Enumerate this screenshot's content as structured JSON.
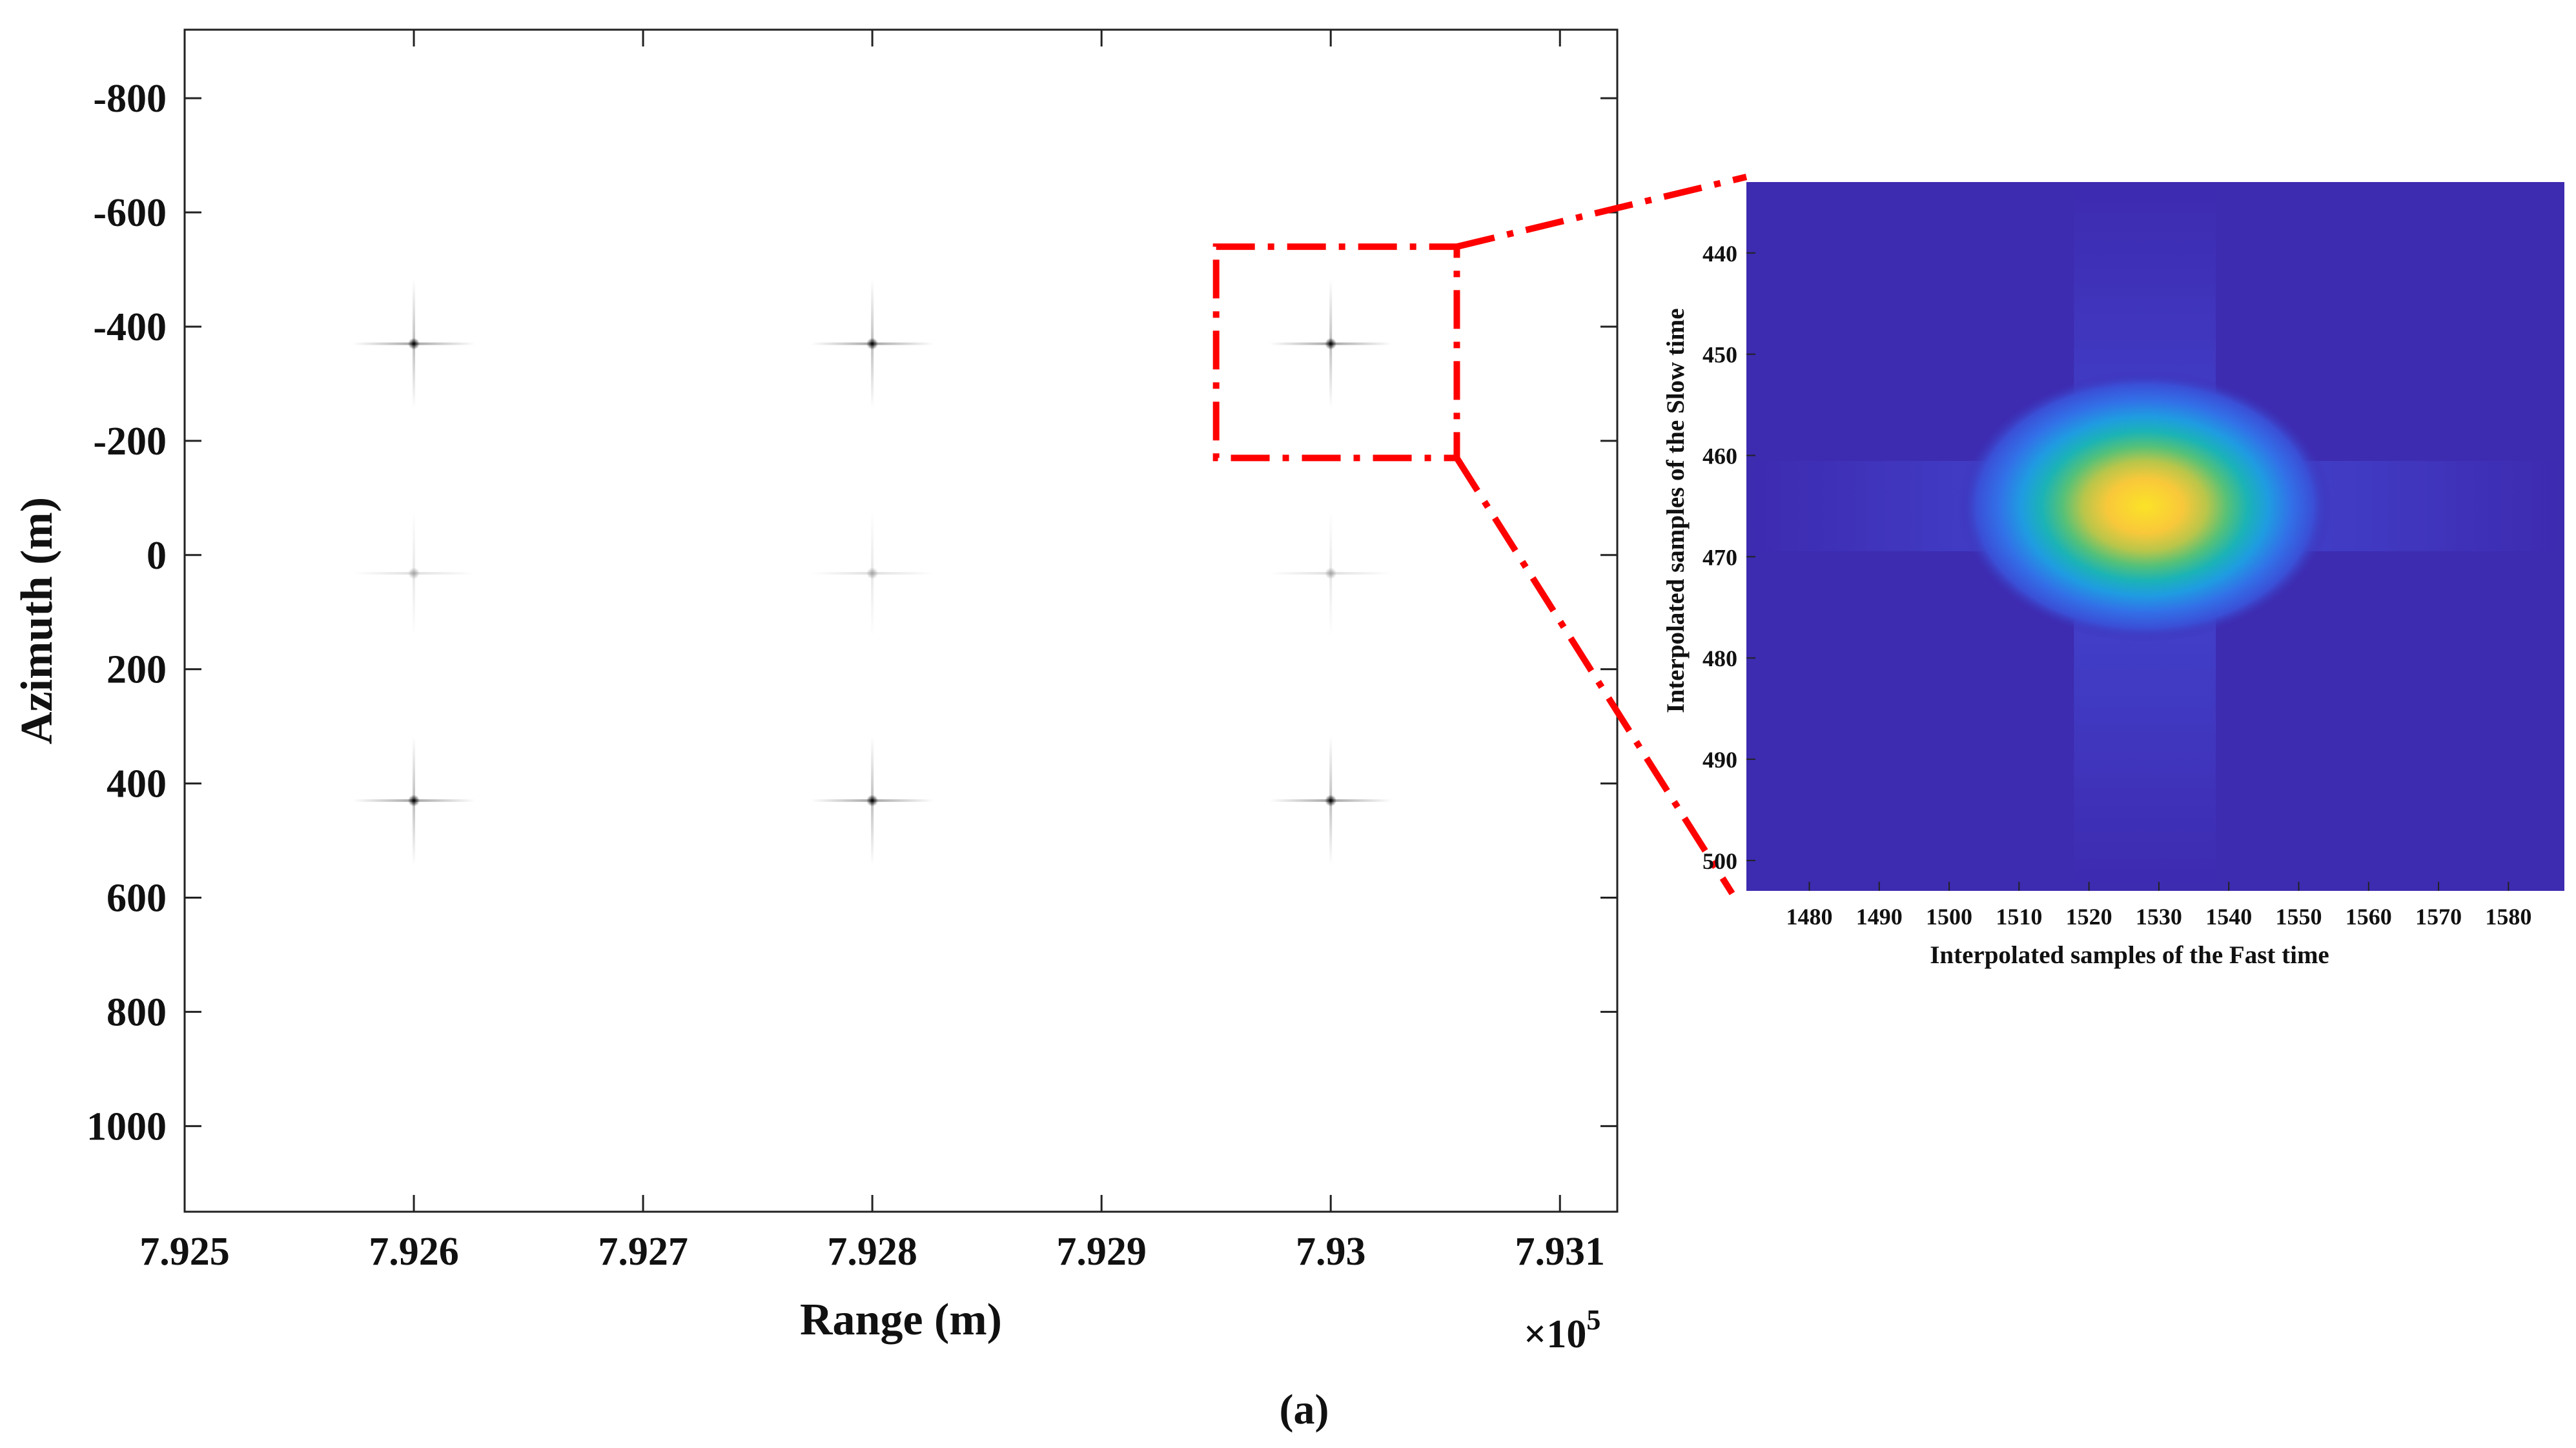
{
  "chart_data": [
    {
      "type": "scatter",
      "xlabel": "Range (m)",
      "ylabel": "Azimuth (m)",
      "x_multiplier": "×10",
      "x_multiplier_exp": "5",
      "xlim": [
        7.925,
        7.93125
      ],
      "ylim": [
        -920,
        1150
      ],
      "y_reversed": true,
      "xticks": [
        7.925,
        7.926,
        7.927,
        7.928,
        7.929,
        7.93,
        7.931
      ],
      "xtick_labels": [
        "7.925",
        "7.926",
        "7.927",
        "7.928",
        "7.929",
        "7.93",
        "7.931"
      ],
      "yticks": [
        -800,
        -600,
        -400,
        -200,
        0,
        200,
        400,
        600,
        800,
        1000
      ],
      "ytick_labels": [
        "-800",
        "-600",
        "-400",
        "-200",
        "0",
        "200",
        "400",
        "600",
        "800",
        "1000"
      ],
      "points": [
        {
          "x": 7.926,
          "y": -370,
          "strength": 1.0
        },
        {
          "x": 7.928,
          "y": -370,
          "strength": 1.0
        },
        {
          "x": 7.93,
          "y": -370,
          "strength": 1.0
        },
        {
          "x": 7.926,
          "y": 32,
          "strength": 0.35
        },
        {
          "x": 7.928,
          "y": 32,
          "strength": 0.35
        },
        {
          "x": 7.93,
          "y": 32,
          "strength": 0.35
        },
        {
          "x": 7.926,
          "y": 430,
          "strength": 1.0
        },
        {
          "x": 7.928,
          "y": 430,
          "strength": 1.0
        },
        {
          "x": 7.93,
          "y": 430,
          "strength": 1.0
        }
      ],
      "zoom_region": {
        "x": [
          7.9295,
          7.93055
        ],
        "y": [
          -540,
          -170
        ]
      },
      "highlight_color": "#ff0000",
      "grid": false
    },
    {
      "type": "heatmap",
      "xlabel": "Interpolated samples of the Fast time",
      "ylabel": "Interpolated samples of the Slow time",
      "xlim": [
        1471,
        1588
      ],
      "ylim": [
        433,
        503
      ],
      "y_reversed": true,
      "xticks": [
        1480,
        1490,
        1500,
        1510,
        1520,
        1530,
        1540,
        1550,
        1560,
        1570,
        1580
      ],
      "xtick_labels": [
        "1480",
        "1490",
        "1500",
        "1510",
        "1520",
        "1530",
        "1540",
        "1550",
        "1560",
        "1570",
        "1580"
      ],
      "yticks": [
        440,
        450,
        460,
        470,
        480,
        490,
        500
      ],
      "ytick_labels": [
        "440",
        "450",
        "460",
        "470",
        "480",
        "490",
        "500"
      ],
      "peak": {
        "x": 1528,
        "y": 465
      },
      "colormap": "parula",
      "background_color": "#3d2bb0",
      "grid": false
    }
  ],
  "caption": "(a)"
}
